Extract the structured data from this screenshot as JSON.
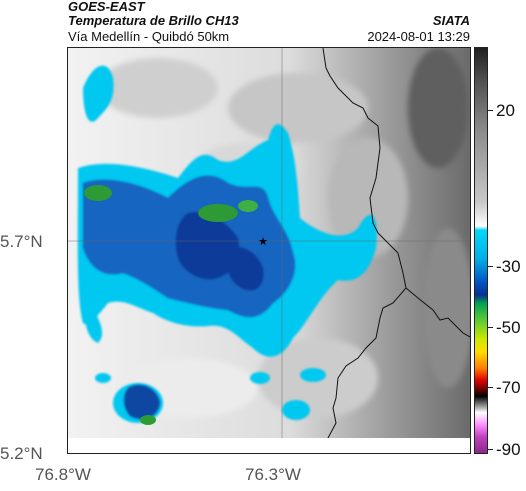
{
  "header": {
    "satellite": "GOES-EAST",
    "product": "Temperatura de Brillo CH13",
    "region": "Vía Medellín - Quibdó 50km",
    "org": "SIATA",
    "datetime": "2024-08-01 13:29"
  },
  "axes": {
    "lat_labels": [
      "5.7°N",
      "5.2°N"
    ],
    "lon_labels": [
      "76.8°W",
      "76.3°W"
    ]
  },
  "colorbar": {
    "labels": [
      "20",
      "-30",
      "-50",
      "-70",
      "-90"
    ]
  },
  "marker": {
    "symbol": "★",
    "description": ""
  },
  "colors": {
    "cold_cyan": "#00c8f0",
    "deep_blue": "#0a3a9a",
    "green": "#2e9a35",
    "border": "#111111"
  }
}
